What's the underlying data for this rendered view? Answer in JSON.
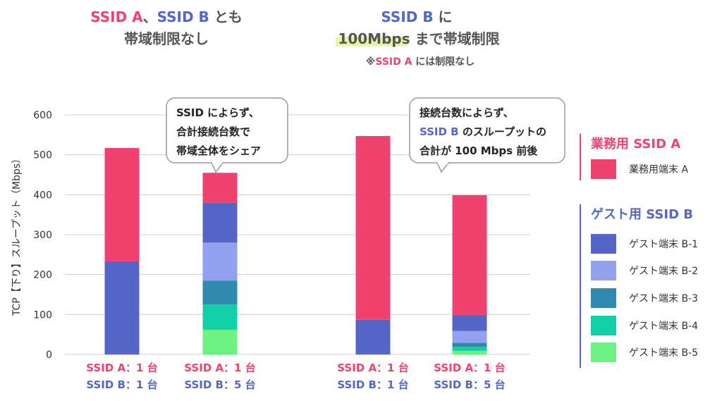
{
  "colors": {
    "ssid_a": "#f0426f",
    "ssid_b": "#5566c8",
    "gray_text": "#555555",
    "highlight": "#e6f5a6",
    "grid": "#cfcfcf",
    "bracket_a": "#f0426f",
    "bracket_b": "#5566c8"
  },
  "headings": {
    "left": {
      "line1": [
        {
          "text": "SSID A",
          "role": "a"
        },
        {
          "text": "、",
          "role": "gray"
        },
        {
          "text": "SSID B",
          "role": "b"
        },
        {
          "text": " とも",
          "role": "gray"
        }
      ],
      "line2": "帯域制限なし"
    },
    "right": {
      "line1": [
        {
          "text": "SSID B",
          "role": "b"
        },
        {
          "text": " に",
          "role": "gray"
        }
      ],
      "line2": [
        {
          "text": "100Mbps",
          "role": "gray_hl"
        },
        {
          "text": " まで帯域制限",
          "role": "gray"
        }
      ],
      "line3": [
        {
          "text": "※",
          "role": "gray"
        },
        {
          "text": "SSID A",
          "role": "a"
        },
        {
          "text": " には制限なし",
          "role": "gray"
        }
      ]
    }
  },
  "callouts": [
    {
      "lines": [
        [
          {
            "text": "SSID によらず、",
            "role": "dark"
          }
        ],
        [
          {
            "text": "合計接続台数で",
            "role": "dark"
          }
        ],
        [
          {
            "text": "帯域全体をシェア",
            "role": "dark"
          }
        ]
      ]
    },
    {
      "lines": [
        [
          {
            "text": "接続台数によらず、",
            "role": "dark"
          }
        ],
        [
          {
            "text": "SSID B",
            "role": "b"
          },
          {
            "text": " のスループットの",
            "role": "dark"
          }
        ],
        [
          {
            "text": "合計が 100 Mbps 前後",
            "role": "dark"
          }
        ]
      ]
    }
  ],
  "legend": {
    "group_a_title": "業務用 SSID A",
    "group_b_title": "ゲスト用 SSID B",
    "items": [
      {
        "label": "業務用端末 A",
        "color": "#f0426f",
        "group": "a"
      },
      {
        "label": "ゲスト端末 B-1",
        "color": "#5566c8",
        "group": "b"
      },
      {
        "label": "ゲスト端末 B-2",
        "color": "#93a0ef",
        "group": "b"
      },
      {
        "label": "ゲスト端末 B-3",
        "color": "#2f88ad",
        "group": "b"
      },
      {
        "label": "ゲスト端末 B-4",
        "color": "#12cfa8",
        "group": "b"
      },
      {
        "label": "ゲスト端末 B-5",
        "color": "#6cf283",
        "group": "b"
      }
    ]
  },
  "chart_data": {
    "type": "bar",
    "stacked": true,
    "ylabel": "TCP【下り】スループット（Mbps）",
    "ylim": [
      0,
      600
    ],
    "yticks": [
      0,
      100,
      200,
      300,
      400,
      500,
      600
    ],
    "grid": true,
    "categories": [
      {
        "line1": "SSID A：1 台",
        "line2": "SSID B：1 台"
      },
      {
        "line1": "SSID A：1 台",
        "line2": "SSID B：5 台"
      },
      {
        "line1": "SSID A：1 台",
        "line2": "SSID B：1 台"
      },
      {
        "line1": "SSID A：1 台",
        "line2": "SSID B：5 台"
      }
    ],
    "series": [
      {
        "name": "ゲスト端末 B-5",
        "color": "#6cf283",
        "values": [
          0,
          62,
          0,
          9
        ]
      },
      {
        "name": "ゲスト端末 B-4",
        "color": "#12cfa8",
        "values": [
          0,
          63,
          0,
          10
        ]
      },
      {
        "name": "ゲスト端末 B-3",
        "color": "#2f88ad",
        "values": [
          0,
          60,
          0,
          10
        ]
      },
      {
        "name": "ゲスト端末 B-2",
        "color": "#93a0ef",
        "values": [
          0,
          95,
          0,
          30
        ]
      },
      {
        "name": "ゲスト端末 B-1",
        "color": "#5566c8",
        "values": [
          233,
          100,
          87,
          40
        ]
      },
      {
        "name": "業務用端末 A",
        "color": "#f0426f",
        "values": [
          284,
          75,
          460,
          300
        ]
      }
    ]
  }
}
